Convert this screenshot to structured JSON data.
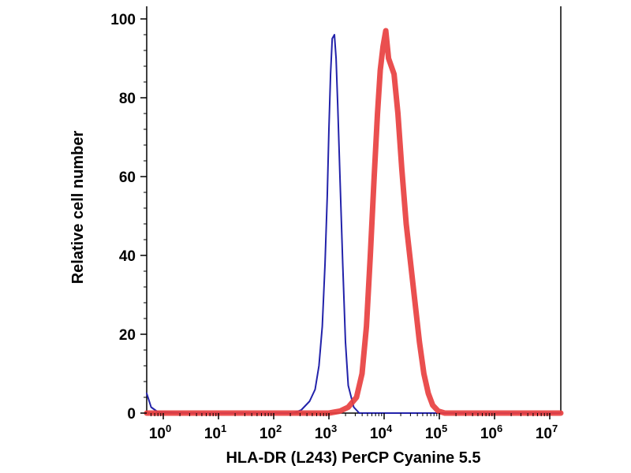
{
  "chart_data": {
    "type": "line",
    "xlabel": "HLA-DR (L243) PerCP Cyanine 5.5",
    "ylabel": "Relative cell number",
    "xscale": "log",
    "xlim_log10": [
      -0.3,
      7.2
    ],
    "ylim": [
      0,
      100
    ],
    "x_ticks": [
      {
        "base": "10",
        "exp": "0",
        "log10": 0
      },
      {
        "base": "10",
        "exp": "1",
        "log10": 1
      },
      {
        "base": "10",
        "exp": "2",
        "log10": 2
      },
      {
        "base": "10",
        "exp": "3",
        "log10": 3
      },
      {
        "base": "10",
        "exp": "4",
        "log10": 4
      },
      {
        "base": "10",
        "exp": "5",
        "log10": 5
      },
      {
        "base": "10",
        "exp": "6",
        "log10": 6
      },
      {
        "base": "10",
        "exp": "7",
        "log10": 7
      }
    ],
    "y_ticks": [
      "0",
      "20",
      "40",
      "60",
      "80",
      "100"
    ],
    "grid": false,
    "series": [
      {
        "color": "#2222aa",
        "points": [
          [
            -0.3,
            5
          ],
          [
            -0.22,
            1.5
          ],
          [
            -0.1,
            0.3
          ],
          [
            0.5,
            0
          ],
          [
            1.5,
            0
          ],
          [
            2.35,
            0
          ],
          [
            2.5,
            0.8
          ],
          [
            2.65,
            3
          ],
          [
            2.75,
            6
          ],
          [
            2.82,
            12
          ],
          [
            2.88,
            22
          ],
          [
            2.93,
            38
          ],
          [
            2.97,
            55
          ],
          [
            3.0,
            72
          ],
          [
            3.03,
            86
          ],
          [
            3.06,
            95
          ],
          [
            3.1,
            96
          ],
          [
            3.13,
            90
          ],
          [
            3.16,
            78
          ],
          [
            3.2,
            60
          ],
          [
            3.25,
            38
          ],
          [
            3.3,
            18
          ],
          [
            3.35,
            7
          ],
          [
            3.45,
            1.5
          ],
          [
            3.55,
            0
          ],
          [
            4.0,
            0
          ],
          [
            7.2,
            0
          ]
        ]
      },
      {
        "color": "#e84040",
        "points": [
          [
            -0.3,
            0
          ],
          [
            3.0,
            0
          ],
          [
            3.2,
            0.5
          ],
          [
            3.35,
            1.5
          ],
          [
            3.5,
            4
          ],
          [
            3.6,
            10
          ],
          [
            3.68,
            22
          ],
          [
            3.75,
            40
          ],
          [
            3.82,
            60
          ],
          [
            3.88,
            76
          ],
          [
            3.93,
            87
          ],
          [
            3.98,
            93
          ],
          [
            4.03,
            97
          ],
          [
            4.08,
            90
          ],
          [
            4.13,
            88
          ],
          [
            4.18,
            86
          ],
          [
            4.25,
            76
          ],
          [
            4.32,
            62
          ],
          [
            4.4,
            48
          ],
          [
            4.48,
            38
          ],
          [
            4.56,
            28
          ],
          [
            4.64,
            18
          ],
          [
            4.72,
            10
          ],
          [
            4.8,
            5
          ],
          [
            4.88,
            2
          ],
          [
            4.98,
            0.5
          ],
          [
            5.1,
            0
          ],
          [
            7.2,
            0
          ]
        ]
      }
    ]
  }
}
